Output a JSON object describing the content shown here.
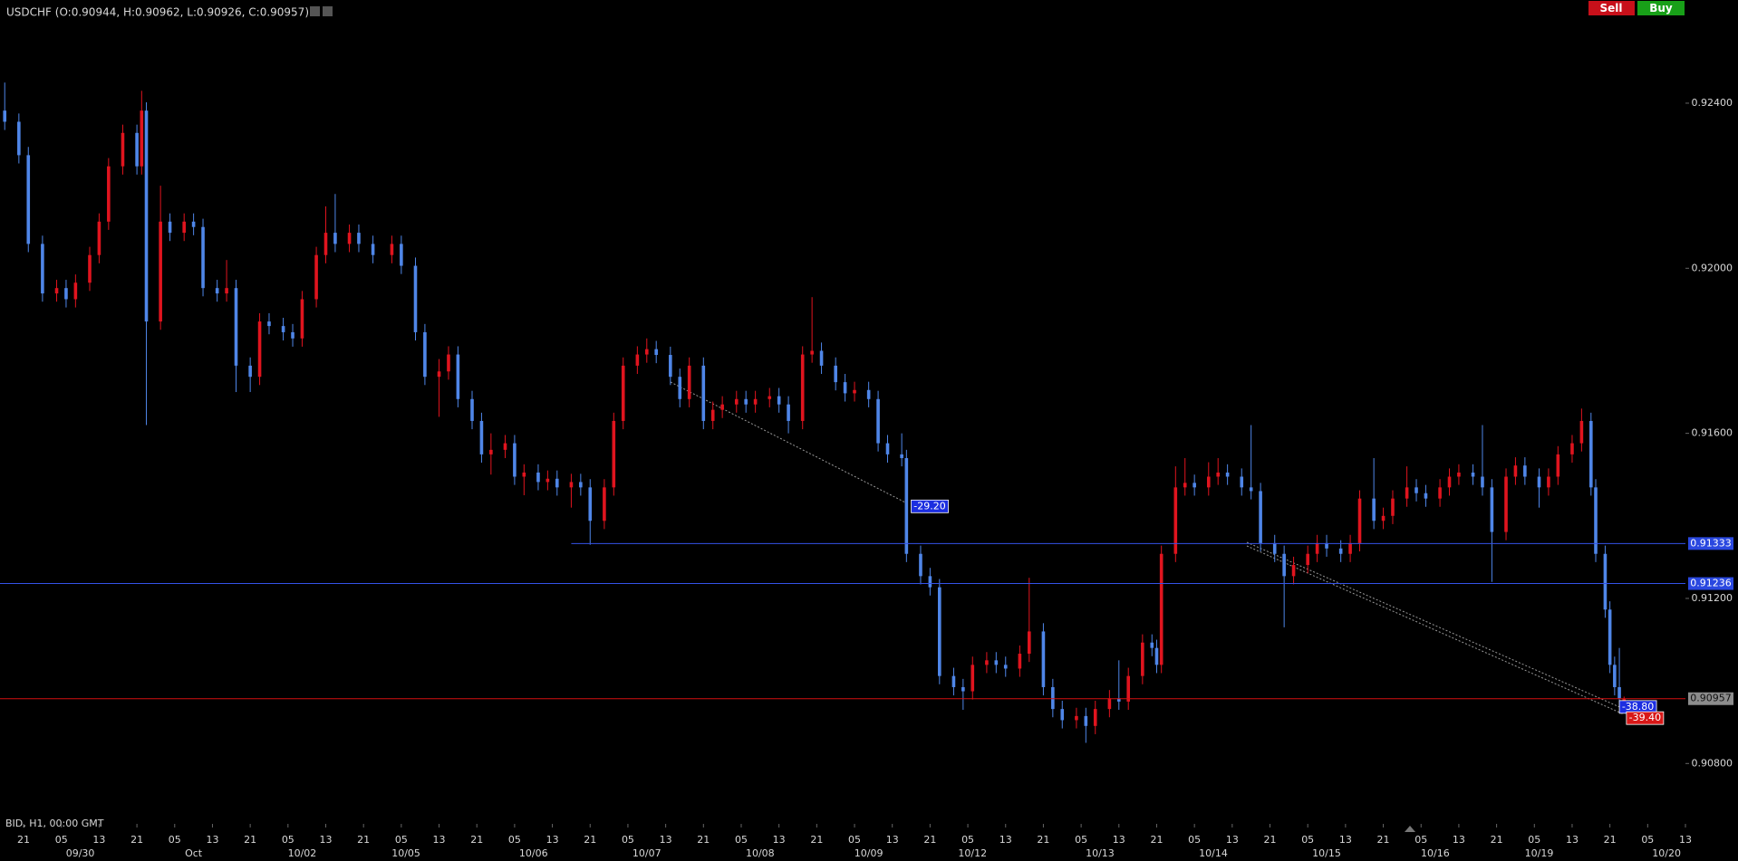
{
  "chart_data": {
    "type": "candlestick",
    "title": "USDCHF (O:0.90944, H:0.90962, L:0.90926, C:0.90957)",
    "footer": "BID, H1, 00:00 GMT",
    "up_color": "#e0141e",
    "down_color": "#4f86e8",
    "xlim": [
      -1,
      356
    ],
    "ylim": [
      0.9068,
      0.9265
    ],
    "yticks": [
      {
        "value": 0.924,
        "label": "0.92400"
      },
      {
        "value": 0.92,
        "label": "0.92000"
      },
      {
        "value": 0.916,
        "label": "0.91600"
      },
      {
        "value": 0.912,
        "label": "0.91200"
      },
      {
        "value": 0.908,
        "label": "0.90800"
      }
    ],
    "xticks": [
      {
        "value": 4,
        "label": "21"
      },
      {
        "value": 12,
        "label": "05"
      },
      {
        "value": 20,
        "label": "13"
      },
      {
        "value": 28,
        "label": "21"
      },
      {
        "value": 36,
        "label": "05"
      },
      {
        "value": 44,
        "label": "13"
      },
      {
        "value": 52,
        "label": "21"
      },
      {
        "value": 60,
        "label": "05"
      },
      {
        "value": 68,
        "label": "13"
      },
      {
        "value": 76,
        "label": "21"
      },
      {
        "value": 84,
        "label": "05"
      },
      {
        "value": 92,
        "label": "13"
      },
      {
        "value": 100,
        "label": "21"
      },
      {
        "value": 108,
        "label": "05"
      },
      {
        "value": 116,
        "label": "13"
      },
      {
        "value": 124,
        "label": "21"
      },
      {
        "value": 132,
        "label": "05"
      },
      {
        "value": 140,
        "label": "13"
      },
      {
        "value": 148,
        "label": "21"
      },
      {
        "value": 156,
        "label": "05"
      },
      {
        "value": 164,
        "label": "13"
      },
      {
        "value": 172,
        "label": "21"
      },
      {
        "value": 180,
        "label": "05"
      },
      {
        "value": 188,
        "label": "13"
      },
      {
        "value": 196,
        "label": "21"
      },
      {
        "value": 204,
        "label": "05"
      },
      {
        "value": 212,
        "label": "13"
      },
      {
        "value": 220,
        "label": "21"
      },
      {
        "value": 228,
        "label": "05"
      },
      {
        "value": 236,
        "label": "13"
      },
      {
        "value": 244,
        "label": "21"
      },
      {
        "value": 252,
        "label": "05"
      },
      {
        "value": 260,
        "label": "13"
      },
      {
        "value": 268,
        "label": "21"
      },
      {
        "value": 276,
        "label": "05"
      },
      {
        "value": 284,
        "label": "13"
      },
      {
        "value": 292,
        "label": "21"
      },
      {
        "value": 300,
        "label": "05"
      },
      {
        "value": 308,
        "label": "13"
      },
      {
        "value": 316,
        "label": "21"
      },
      {
        "value": 324,
        "label": "05"
      },
      {
        "value": 332,
        "label": "13"
      },
      {
        "value": 340,
        "label": "21"
      },
      {
        "value": 348,
        "label": "05"
      },
      {
        "value": 356,
        "label": "13"
      }
    ],
    "date_labels": [
      {
        "value": 16,
        "label": "09/30"
      },
      {
        "value": 40,
        "label": "Oct"
      },
      {
        "value": 63,
        "label": "10/02"
      },
      {
        "value": 85,
        "label": "10/05"
      },
      {
        "value": 112,
        "label": "10/06"
      },
      {
        "value": 136,
        "label": "10/07"
      },
      {
        "value": 160,
        "label": "10/08"
      },
      {
        "value": 183,
        "label": "10/09"
      },
      {
        "value": 205,
        "label": "10/12"
      },
      {
        "value": 232,
        "label": "10/13"
      },
      {
        "value": 256,
        "label": "10/14"
      },
      {
        "value": 280,
        "label": "10/15"
      },
      {
        "value": 303,
        "label": "10/16"
      },
      {
        "value": 325,
        "label": "10/19"
      },
      {
        "value": 352,
        "label": "10/20"
      }
    ],
    "x": [
      0,
      3,
      5,
      8,
      11,
      13,
      15,
      18,
      20,
      22,
      25,
      28,
      29,
      30,
      33,
      35,
      38,
      40,
      42,
      45,
      47,
      49,
      52,
      54,
      56,
      59,
      61,
      63,
      66,
      68,
      70,
      73,
      75,
      78,
      82,
      84,
      87,
      89,
      92,
      94,
      96,
      99,
      101,
      103,
      106,
      108,
      110,
      113,
      115,
      117,
      120,
      122,
      124,
      127,
      129,
      131,
      134,
      136,
      138,
      141,
      143,
      145,
      148,
      150,
      152,
      155,
      157,
      159,
      162,
      164,
      166,
      169,
      171,
      173,
      176,
      178,
      180,
      183,
      185,
      187,
      190,
      191,
      194,
      196,
      198,
      201,
      203,
      205,
      208,
      210,
      212,
      215,
      217,
      220,
      222,
      224,
      227,
      229,
      231,
      234,
      236,
      238,
      241,
      243,
      244,
      245,
      248,
      250,
      252,
      255,
      257,
      259,
      262,
      264,
      266,
      269,
      271,
      273,
      276,
      278,
      280,
      283,
      285,
      287,
      290,
      292,
      294,
      297,
      299,
      301,
      304,
      306,
      308,
      311,
      313,
      315,
      318,
      320,
      322,
      325,
      327,
      329,
      332,
      334,
      336,
      337,
      339,
      340,
      341,
      342,
      343
    ],
    "ohlc": [
      [
        0.92382,
        0.9245,
        0.92335,
        0.92355
      ],
      [
        0.92355,
        0.92375,
        0.92254,
        0.92274
      ],
      [
        0.92274,
        0.92294,
        0.92039,
        0.92059
      ],
      [
        0.92059,
        0.92079,
        0.91919,
        0.91939
      ],
      [
        0.91939,
        0.91972,
        0.91919,
        0.91952
      ],
      [
        0.91952,
        0.91972,
        0.91905,
        0.91925
      ],
      [
        0.91925,
        0.91985,
        0.91905,
        0.91965
      ],
      [
        0.91965,
        0.92052,
        0.91945,
        0.92032
      ],
      [
        0.92032,
        0.92133,
        0.92012,
        0.92113
      ],
      [
        0.92113,
        0.92267,
        0.92093,
        0.92247
      ],
      [
        0.92247,
        0.92348,
        0.92227,
        0.92328
      ],
      [
        0.92328,
        0.92348,
        0.92227,
        0.92247
      ],
      [
        0.92247,
        0.9243,
        0.92227,
        0.92382
      ],
      [
        0.92382,
        0.92402,
        0.9162,
        0.91871
      ],
      [
        0.91871,
        0.922,
        0.91851,
        0.92113
      ],
      [
        0.92113,
        0.92133,
        0.92066,
        0.92086
      ],
      [
        0.92086,
        0.92133,
        0.92066,
        0.92113
      ],
      [
        0.92113,
        0.92133,
        0.9208,
        0.921
      ],
      [
        0.921,
        0.9212,
        0.91932,
        0.91952
      ],
      [
        0.91952,
        0.91972,
        0.91919,
        0.91939
      ],
      [
        0.91939,
        0.9202,
        0.91919,
        0.91952
      ],
      [
        0.91952,
        0.91972,
        0.917,
        0.91764
      ],
      [
        0.91764,
        0.91784,
        0.917,
        0.91737
      ],
      [
        0.91737,
        0.91891,
        0.91717,
        0.91871
      ],
      [
        0.91871,
        0.91891,
        0.9184,
        0.9186
      ],
      [
        0.9186,
        0.9188,
        0.91825,
        0.91845
      ],
      [
        0.91845,
        0.91865,
        0.9181,
        0.9183
      ],
      [
        0.9183,
        0.91945,
        0.9181,
        0.91925
      ],
      [
        0.91925,
        0.92052,
        0.91905,
        0.92032
      ],
      [
        0.92032,
        0.9215,
        0.92012,
        0.92086
      ],
      [
        0.92086,
        0.9218,
        0.92039,
        0.92059
      ],
      [
        0.92059,
        0.92106,
        0.92039,
        0.92086
      ],
      [
        0.92086,
        0.92106,
        0.92039,
        0.92059
      ],
      [
        0.92059,
        0.92079,
        0.92012,
        0.92032
      ],
      [
        0.92032,
        0.92079,
        0.92012,
        0.92059
      ],
      [
        0.92059,
        0.92079,
        0.91986,
        0.92006
      ],
      [
        0.92006,
        0.92026,
        0.91825,
        0.91845
      ],
      [
        0.91845,
        0.91865,
        0.91717,
        0.91737
      ],
      [
        0.91737,
        0.9178,
        0.9164,
        0.9175
      ],
      [
        0.9175,
        0.91811,
        0.9173,
        0.91791
      ],
      [
        0.91791,
        0.91811,
        0.91663,
        0.91683
      ],
      [
        0.91683,
        0.91703,
        0.9161,
        0.9163
      ],
      [
        0.9163,
        0.9165,
        0.91529,
        0.91549
      ],
      [
        0.91549,
        0.916,
        0.915,
        0.9156
      ],
      [
        0.9156,
        0.91596,
        0.9154,
        0.91576
      ],
      [
        0.91576,
        0.91596,
        0.91475,
        0.91495
      ],
      [
        0.91495,
        0.91525,
        0.9145,
        0.91505
      ],
      [
        0.91505,
        0.91525,
        0.91462,
        0.91482
      ],
      [
        0.91482,
        0.9151,
        0.91462,
        0.9149
      ],
      [
        0.9149,
        0.9151,
        0.91449,
        0.91469
      ],
      [
        0.91469,
        0.91502,
        0.9142,
        0.91482
      ],
      [
        0.91482,
        0.91502,
        0.91449,
        0.91469
      ],
      [
        0.91469,
        0.91489,
        0.9133,
        0.91388
      ],
      [
        0.91388,
        0.91489,
        0.91368,
        0.91469
      ],
      [
        0.91469,
        0.9165,
        0.91449,
        0.9163
      ],
      [
        0.9163,
        0.91784,
        0.9161,
        0.91764
      ],
      [
        0.91764,
        0.91811,
        0.91744,
        0.91791
      ],
      [
        0.91791,
        0.9183,
        0.91771,
        0.91804
      ],
      [
        0.91804,
        0.91824,
        0.9177,
        0.9179
      ],
      [
        0.9179,
        0.9181,
        0.91717,
        0.91737
      ],
      [
        0.91737,
        0.91757,
        0.91663,
        0.91683
      ],
      [
        0.91683,
        0.91784,
        0.91663,
        0.91764
      ],
      [
        0.91764,
        0.91784,
        0.9161,
        0.9163
      ],
      [
        0.9163,
        0.91677,
        0.9161,
        0.91657
      ],
      [
        0.91657,
        0.9169,
        0.91637,
        0.9167
      ],
      [
        0.9167,
        0.91703,
        0.9165,
        0.91683
      ],
      [
        0.91683,
        0.91703,
        0.9165,
        0.9167
      ],
      [
        0.9167,
        0.91703,
        0.9165,
        0.91683
      ],
      [
        0.91683,
        0.9171,
        0.91663,
        0.9169
      ],
      [
        0.9169,
        0.9171,
        0.9165,
        0.9167
      ],
      [
        0.9167,
        0.9169,
        0.916,
        0.9163
      ],
      [
        0.9163,
        0.91811,
        0.9161,
        0.91791
      ],
      [
        0.91791,
        0.9193,
        0.91771,
        0.918
      ],
      [
        0.918,
        0.9182,
        0.91744,
        0.91764
      ],
      [
        0.91764,
        0.91784,
        0.91704,
        0.91724
      ],
      [
        0.91724,
        0.91744,
        0.91677,
        0.91697
      ],
      [
        0.91697,
        0.91725,
        0.91677,
        0.91705
      ],
      [
        0.91705,
        0.91725,
        0.91663,
        0.91683
      ],
      [
        0.91683,
        0.91703,
        0.91556,
        0.91576
      ],
      [
        0.91576,
        0.91596,
        0.91529,
        0.91549
      ],
      [
        0.91549,
        0.916,
        0.9152,
        0.9154
      ],
      [
        0.9154,
        0.9156,
        0.91288,
        0.91308
      ],
      [
        0.91308,
        0.91328,
        0.91234,
        0.91254
      ],
      [
        0.91254,
        0.91274,
        0.91207,
        0.91227
      ],
      [
        0.91227,
        0.91247,
        0.90992,
        0.91012
      ],
      [
        0.91012,
        0.91032,
        0.90965,
        0.90985
      ],
      [
        0.90985,
        0.91005,
        0.9093,
        0.90975
      ],
      [
        0.90975,
        0.91059,
        0.90955,
        0.91039
      ],
      [
        0.91039,
        0.9107,
        0.91019,
        0.9105
      ],
      [
        0.9105,
        0.9107,
        0.91019,
        0.91039
      ],
      [
        0.91039,
        0.91059,
        0.9101,
        0.9103
      ],
      [
        0.9103,
        0.91086,
        0.9101,
        0.91066
      ],
      [
        0.91066,
        0.9125,
        0.91046,
        0.9112
      ],
      [
        0.9112,
        0.9114,
        0.90965,
        0.90985
      ],
      [
        0.90985,
        0.91005,
        0.90912,
        0.90932
      ],
      [
        0.90932,
        0.90952,
        0.90885,
        0.90905
      ],
      [
        0.90905,
        0.90935,
        0.90885,
        0.90915
      ],
      [
        0.90915,
        0.90935,
        0.9085,
        0.90891
      ],
      [
        0.90891,
        0.90952,
        0.90871,
        0.90932
      ],
      [
        0.90932,
        0.90978,
        0.90912,
        0.90958
      ],
      [
        0.90958,
        0.9105,
        0.9093,
        0.9095
      ],
      [
        0.9095,
        0.91032,
        0.9093,
        0.91012
      ],
      [
        0.91012,
        0.91113,
        0.90992,
        0.91093
      ],
      [
        0.91093,
        0.91113,
        0.9106,
        0.9108
      ],
      [
        0.9108,
        0.911,
        0.91019,
        0.91039
      ],
      [
        0.91039,
        0.91328,
        0.91019,
        0.91308
      ],
      [
        0.91308,
        0.9152,
        0.91288,
        0.91469
      ],
      [
        0.91469,
        0.9154,
        0.91449,
        0.9148
      ],
      [
        0.9148,
        0.915,
        0.91449,
        0.91469
      ],
      [
        0.91469,
        0.9153,
        0.91449,
        0.91495
      ],
      [
        0.91495,
        0.9154,
        0.91475,
        0.91505
      ],
      [
        0.91505,
        0.91525,
        0.91475,
        0.91495
      ],
      [
        0.91495,
        0.91515,
        0.91449,
        0.91469
      ],
      [
        0.91469,
        0.9162,
        0.9144,
        0.9146
      ],
      [
        0.9146,
        0.9148,
        0.91314,
        0.91334
      ],
      [
        0.91334,
        0.91354,
        0.91288,
        0.91308
      ],
      [
        0.91308,
        0.91328,
        0.9113,
        0.91254
      ],
      [
        0.91254,
        0.91301,
        0.91234,
        0.91281
      ],
      [
        0.91281,
        0.91328,
        0.91261,
        0.91308
      ],
      [
        0.91308,
        0.91354,
        0.91288,
        0.91334
      ],
      [
        0.91334,
        0.91354,
        0.91301,
        0.91321
      ],
      [
        0.91321,
        0.91341,
        0.91288,
        0.91308
      ],
      [
        0.91308,
        0.91354,
        0.91288,
        0.91334
      ],
      [
        0.91334,
        0.91462,
        0.91314,
        0.91442
      ],
      [
        0.91442,
        0.9154,
        0.91368,
        0.91388
      ],
      [
        0.91388,
        0.9142,
        0.91368,
        0.914
      ],
      [
        0.914,
        0.91462,
        0.9138,
        0.91442
      ],
      [
        0.91442,
        0.9152,
        0.91422,
        0.91469
      ],
      [
        0.91469,
        0.91489,
        0.91435,
        0.91455
      ],
      [
        0.91455,
        0.91475,
        0.91422,
        0.91442
      ],
      [
        0.91442,
        0.91489,
        0.91422,
        0.91469
      ],
      [
        0.91469,
        0.91515,
        0.91449,
        0.91495
      ],
      [
        0.91495,
        0.91525,
        0.91475,
        0.91505
      ],
      [
        0.91505,
        0.91525,
        0.91475,
        0.91495
      ],
      [
        0.91495,
        0.9162,
        0.91449,
        0.91469
      ],
      [
        0.91469,
        0.91489,
        0.9124,
        0.91361
      ],
      [
        0.91361,
        0.91515,
        0.91341,
        0.91495
      ],
      [
        0.91495,
        0.91542,
        0.91475,
        0.91522
      ],
      [
        0.91522,
        0.91542,
        0.91475,
        0.91495
      ],
      [
        0.91495,
        0.91515,
        0.9142,
        0.91469
      ],
      [
        0.91469,
        0.91515,
        0.91449,
        0.91495
      ],
      [
        0.91495,
        0.91569,
        0.91475,
        0.91549
      ],
      [
        0.91549,
        0.91596,
        0.91529,
        0.91576
      ],
      [
        0.91576,
        0.9166,
        0.91556,
        0.9163
      ],
      [
        0.9163,
        0.9165,
        0.91449,
        0.91469
      ],
      [
        0.91469,
        0.91489,
        0.91288,
        0.91308
      ],
      [
        0.91308,
        0.91328,
        0.91153,
        0.91173
      ],
      [
        0.91173,
        0.91193,
        0.91019,
        0.91039
      ],
      [
        0.91039,
        0.91059,
        0.90965,
        0.90985
      ],
      [
        0.90985,
        0.9108,
        0.90938,
        0.90958
      ],
      [
        0.90944,
        0.90962,
        0.90926,
        0.90957
      ]
    ],
    "levels": [
      {
        "value": 0.91333,
        "color": "#3452e8",
        "box_color": "#2a48e0",
        "text_color": "#ffffff",
        "start": 120
      },
      {
        "value": 0.91236,
        "color": "#3452e8",
        "box_color": "#2a48e0",
        "text_color": "#ffffff"
      },
      {
        "value": 0.90957,
        "color": "#d41010",
        "box_color": "#8c8c8c",
        "text_color": "#111111"
      }
    ],
    "annotations": [
      {
        "text": "-29.20",
        "x": 192,
        "y": 0.91423,
        "color": "#1c2ee0"
      },
      {
        "text": "-38.80",
        "x": 342,
        "y": 0.90937,
        "color": "#1c2ee0"
      },
      {
        "text": "-39.40",
        "x": 343.5,
        "y": 0.9091,
        "color": "#d81818"
      }
    ]
  },
  "toolbar": {
    "sell": "Sell",
    "buy": "Buy"
  }
}
